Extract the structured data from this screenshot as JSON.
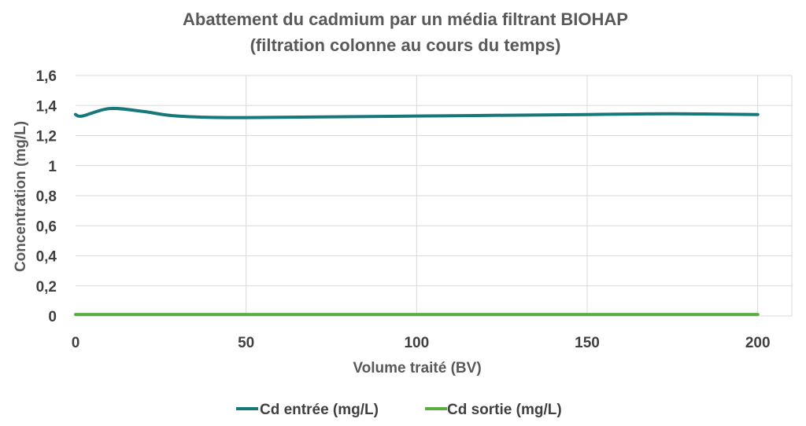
{
  "chart_data": {
    "type": "line",
    "title": [
      "Abattement du cadmium par un média filtrant BIOHAP",
      "(filtration colonne au cours du temps)"
    ],
    "xlabel": "Volume traité (BV)",
    "ylabel": "Concentration (mg/L)",
    "xlim": [
      0,
      210
    ],
    "ylim": [
      0,
      1.6
    ],
    "x_ticks": [
      "0",
      "50",
      "100",
      "150",
      "200"
    ],
    "x_tick_values": [
      0,
      50,
      100,
      150,
      200
    ],
    "y_ticks": [
      "0",
      "0,2",
      "0,4",
      "0,6",
      "0,8",
      "1",
      "1,2",
      "1,4",
      "1,6"
    ],
    "y_tick_values": [
      0,
      0.2,
      0.4,
      0.6,
      0.8,
      1.0,
      1.2,
      1.4,
      1.6
    ],
    "grid": true,
    "legend": "bottom",
    "series": [
      {
        "name": "Cd entrée (mg/L)",
        "color": "#17787a",
        "x": [
          0,
          2,
          10,
          20,
          30,
          50,
          100,
          150,
          175,
          200
        ],
        "y": [
          1.34,
          1.33,
          1.38,
          1.36,
          1.33,
          1.32,
          1.33,
          1.34,
          1.345,
          1.34
        ]
      },
      {
        "name": "Cd sortie (mg/L)",
        "color": "#5aae3f",
        "x": [
          0,
          50,
          100,
          150,
          200
        ],
        "y": [
          0.01,
          0.01,
          0.01,
          0.01,
          0.01
        ]
      }
    ]
  }
}
